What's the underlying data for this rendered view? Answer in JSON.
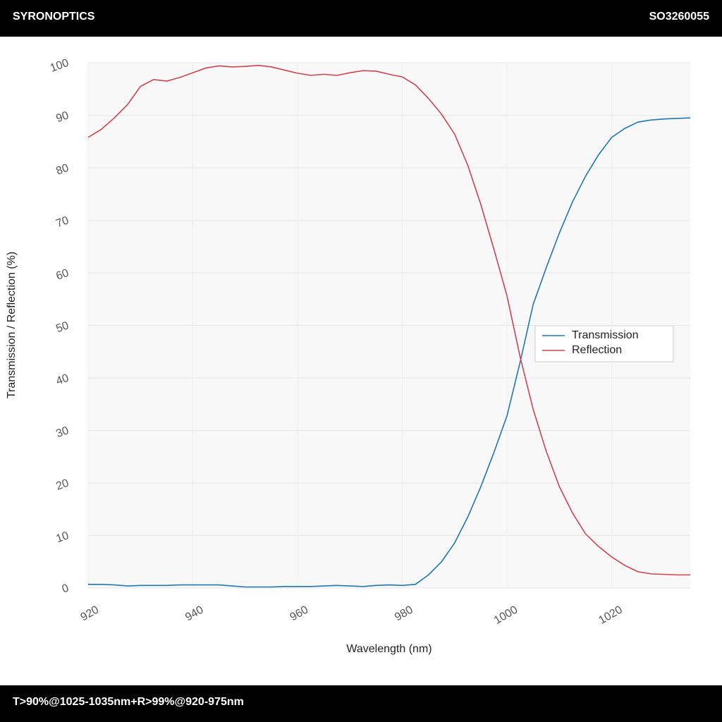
{
  "header": {
    "brand": "SYRONOPTICS",
    "code": "SO3260055"
  },
  "chart_data": {
    "type": "line",
    "x_label": "Wavelength (nm)",
    "y_label": "Transmission / Reflection (%)",
    "x": [
      920,
      922.5,
      925,
      927.5,
      930,
      932.5,
      935,
      937.5,
      940,
      942.5,
      945,
      947.5,
      950,
      952.5,
      955,
      957.5,
      960,
      962.5,
      965,
      967.5,
      970,
      972.5,
      975,
      977.5,
      980,
      982.5,
      985,
      987.5,
      990,
      992.5,
      995,
      997.5,
      1000,
      1002.5,
      1005,
      1007.5,
      1010,
      1012.5,
      1015,
      1017.5,
      1020,
      1022.5,
      1025,
      1027.5,
      1030,
      1032.5,
      1035
    ],
    "series": [
      {
        "name": "Transmission",
        "color": "#1f77b4",
        "values": [
          0.7,
          0.7,
          0.6,
          0.4,
          0.5,
          0.5,
          0.5,
          0.6,
          0.6,
          0.6,
          0.6,
          0.4,
          0.2,
          0.2,
          0.2,
          0.3,
          0.3,
          0.3,
          0.4,
          0.5,
          0.4,
          0.3,
          0.5,
          0.6,
          0.5,
          0.7,
          2.5,
          5,
          8.6,
          13.5,
          19.3,
          25.8,
          32.8,
          43,
          54,
          61,
          67.6,
          73.5,
          78.4,
          82.5,
          85.8,
          87.5,
          88.7,
          89.1,
          89.3,
          89.4,
          89.5
        ]
      },
      {
        "name": "Reflection",
        "color": "#d1434f",
        "values": [
          85.8,
          87.3,
          89.5,
          92,
          95.5,
          96.8,
          96.5,
          97.2,
          98.1,
          99,
          99.4,
          99.2,
          99.3,
          99.5,
          99.2,
          98.6,
          98,
          97.6,
          97.8,
          97.6,
          98.1,
          98.5,
          98.4,
          97.8,
          97.3,
          95.8,
          93.2,
          90.2,
          86.4,
          80.5,
          73,
          64.5,
          55.6,
          44,
          34,
          26,
          19.3,
          14.3,
          10.3,
          7.9,
          5.9,
          4.3,
          3.1,
          2.7,
          2.6,
          2.5,
          2.5
        ]
      }
    ],
    "xlim": [
      920,
      1035
    ],
    "xticks": [
      920,
      940,
      960,
      980,
      1000,
      1020
    ],
    "ylim": [
      0,
      100
    ],
    "yticks": [
      0,
      10,
      20,
      30,
      40,
      50,
      60,
      70,
      80,
      90,
      100
    ],
    "grid": true,
    "legend": "right"
  },
  "footer": {
    "spec": "T>90%@1025-1035nm+R>99%@920-975nm"
  }
}
